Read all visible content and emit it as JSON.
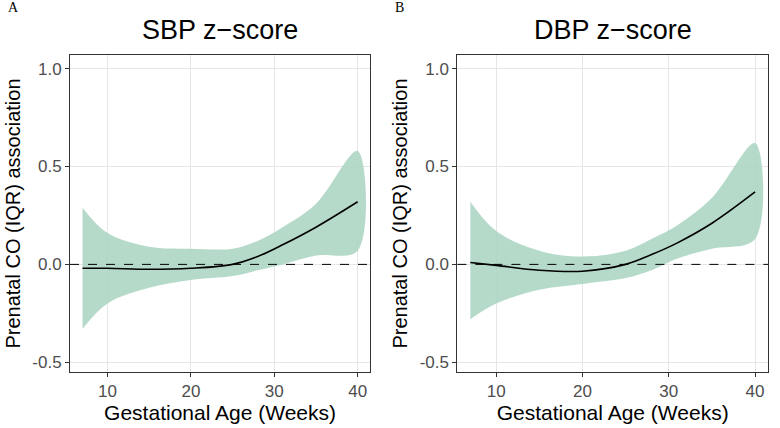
{
  "chart_data": [
    {
      "type": "line",
      "panel": "A",
      "title": "SBP z−score",
      "x_label": "Gestational Age (Weeks)",
      "y_label": "Prenatal CO (IQR) association",
      "x": [
        7,
        10,
        15,
        20,
        25,
        28,
        31,
        35,
        40
      ],
      "series": [
        {
          "type": "band",
          "color": "#a9d3c1",
          "lower": [
            -0.33,
            -0.2,
            -0.12,
            -0.08,
            -0.06,
            -0.03,
            0.0,
            0.045,
            0.07
          ],
          "upper": [
            0.29,
            0.16,
            0.09,
            0.08,
            0.08,
            0.12,
            0.19,
            0.31,
            0.58
          ]
        },
        {
          "type": "line",
          "color": "#000000",
          "values": [
            -0.02,
            -0.02,
            -0.025,
            -0.02,
            0.0,
            0.04,
            0.1,
            0.19,
            0.32
          ]
        }
      ],
      "reference_y": 0,
      "xlim": [
        5.5,
        41.5
      ],
      "xticks": [
        10,
        20,
        30,
        40
      ],
      "ylim": [
        -0.55,
        1.07
      ],
      "yticks": [
        {
          "value": -0.5,
          "label": "-0.5"
        },
        {
          "value": 0,
          "label": "0.0"
        },
        {
          "value": 0.5,
          "label": "0.5"
        },
        {
          "value": 1,
          "label": "1.0"
        }
      ],
      "grid": true
    },
    {
      "type": "line",
      "panel": "B",
      "title": "DBP z−score",
      "x_label": "Gestational Age (Weeks)",
      "y_label": "Prenatal CO (IQR) association",
      "x": [
        7,
        10,
        15,
        20,
        25,
        28,
        31,
        35,
        40
      ],
      "series": [
        {
          "type": "band",
          "color": "#a9d3c1",
          "lower": [
            -0.28,
            -0.2,
            -0.13,
            -0.1,
            -0.07,
            -0.03,
            0.03,
            0.08,
            0.13
          ],
          "upper": [
            0.32,
            0.17,
            0.07,
            0.04,
            0.07,
            0.13,
            0.2,
            0.34,
            0.62
          ]
        },
        {
          "type": "line",
          "color": "#000000",
          "values": [
            0.01,
            -0.005,
            -0.03,
            -0.035,
            0.0,
            0.05,
            0.11,
            0.21,
            0.37
          ]
        }
      ],
      "reference_y": 0,
      "xlim": [
        5.5,
        41.5
      ],
      "xticks": [
        10,
        20,
        30,
        40
      ],
      "ylim": [
        -0.55,
        1.07
      ],
      "yticks": [
        {
          "value": -0.5,
          "label": "-0.5"
        },
        {
          "value": 0,
          "label": "0.0"
        },
        {
          "value": 0.5,
          "label": "0.5"
        },
        {
          "value": 1,
          "label": "1.0"
        }
      ],
      "grid": true
    }
  ]
}
